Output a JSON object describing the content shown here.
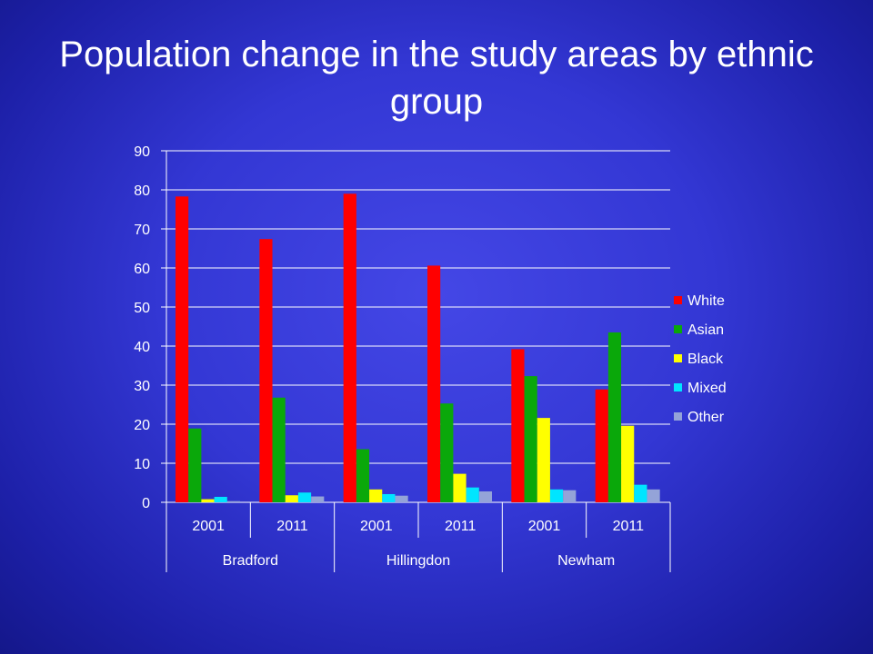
{
  "slide": {
    "title": "Population change in the study areas by ethnic group"
  },
  "chart_data": {
    "type": "bar",
    "title": "",
    "xlabel": "",
    "ylabel": "",
    "ylim": [
      0,
      90
    ],
    "y_ticks": [
      0,
      10,
      20,
      30,
      40,
      50,
      60,
      70,
      80,
      90
    ],
    "grid": true,
    "legend_position": "right",
    "categories": [
      "2001",
      "2011",
      "2001",
      "2011",
      "2001",
      "2011"
    ],
    "groups": [
      {
        "label": "Bradford",
        "categories": [
          "2001",
          "2011"
        ]
      },
      {
        "label": "Hillingdon",
        "categories": [
          "2001",
          "2011"
        ]
      },
      {
        "label": "Newham",
        "categories": [
          "2001",
          "2011"
        ]
      }
    ],
    "series": [
      {
        "name": "White",
        "color": "#ff0000",
        "values": [
          78.3,
          67.4,
          79.0,
          60.6,
          39.2,
          28.9
        ]
      },
      {
        "name": "Asian",
        "color": "#0aa80a",
        "values": [
          18.9,
          26.8,
          13.6,
          25.3,
          32.3,
          43.5
        ]
      },
      {
        "name": "Black",
        "color": "#ffff00",
        "values": [
          0.8,
          1.8,
          3.3,
          7.3,
          21.6,
          19.6
        ]
      },
      {
        "name": "Mixed",
        "color": "#00e5ff",
        "values": [
          1.4,
          2.5,
          2.1,
          3.8,
          3.3,
          4.5
        ]
      },
      {
        "name": "Other",
        "color": "#94a3d8",
        "values": [
          0.3,
          1.5,
          1.7,
          2.8,
          3.1,
          3.3
        ]
      }
    ]
  }
}
